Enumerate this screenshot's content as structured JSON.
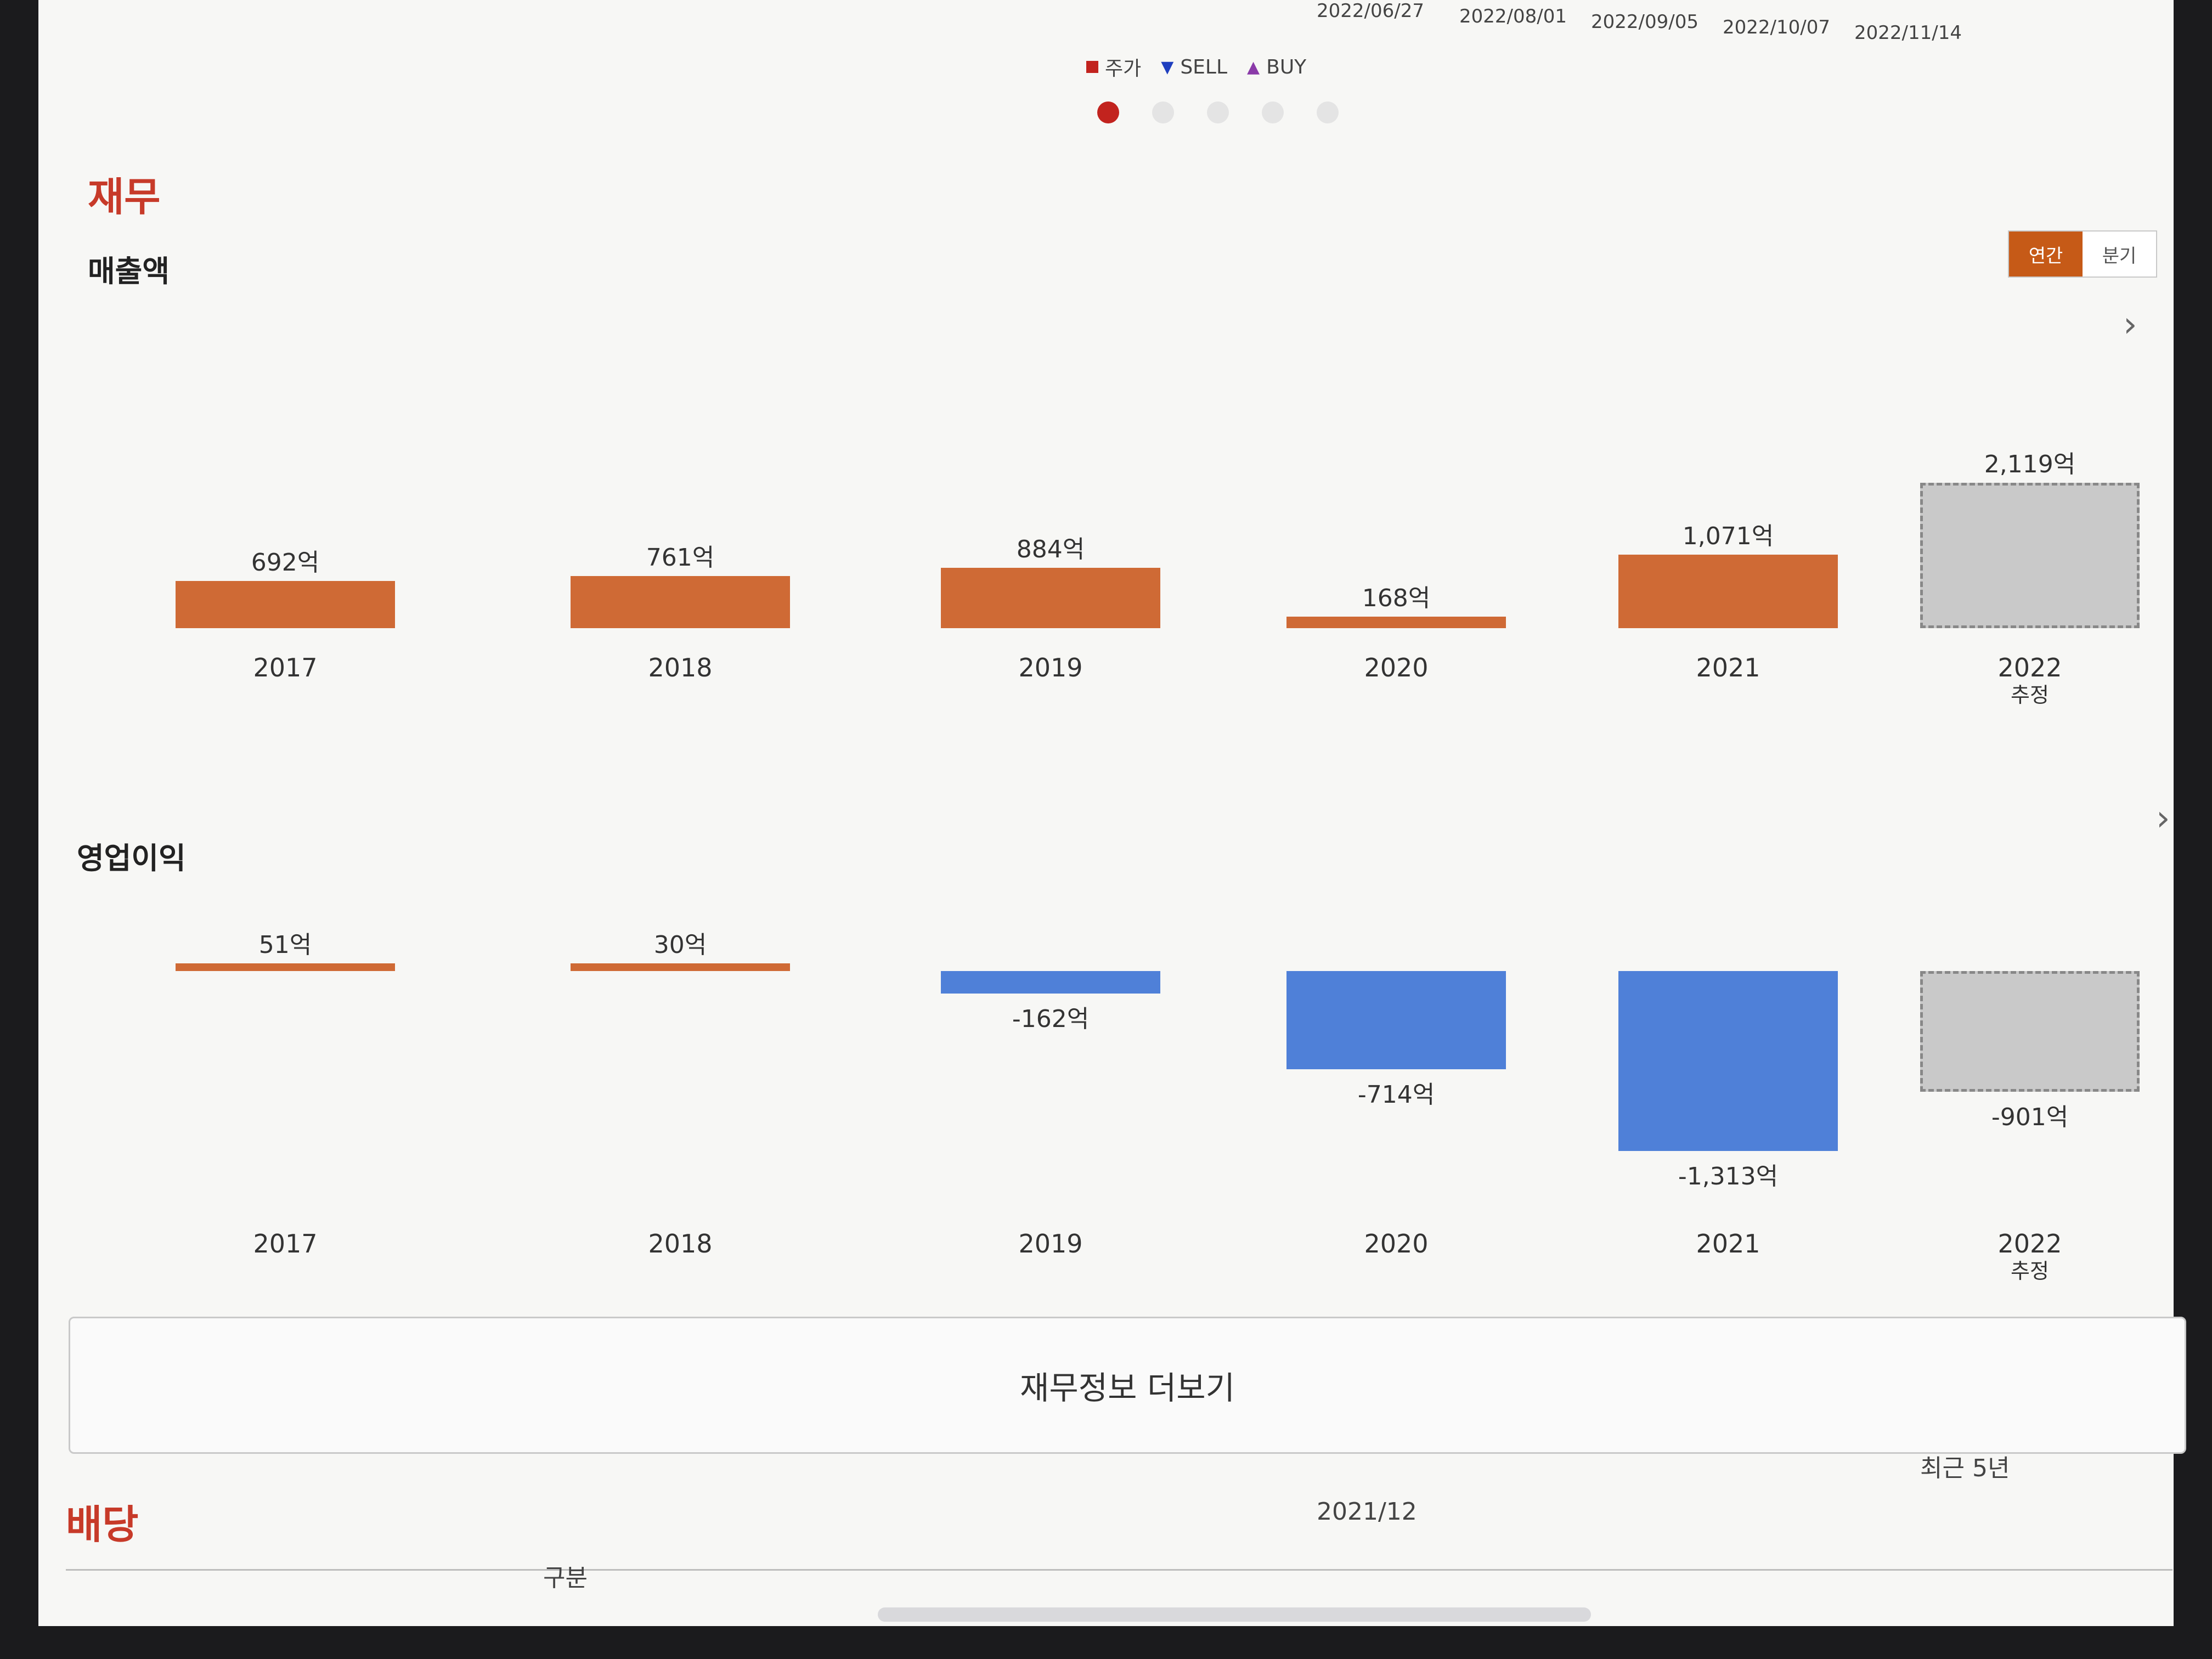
{
  "price_axis": {
    "dates": [
      "2022/06/27",
      "2022/08/01",
      "2022/09/05",
      "2022/10/07",
      "2022/11/14"
    ]
  },
  "legend": [
    {
      "label": "주가",
      "color": "#c2231e",
      "icon": "square-icon"
    },
    {
      "label": "SELL",
      "color": "#1f3fbf",
      "icon": "triangle-down-icon"
    },
    {
      "label": "BUY",
      "color": "#8a3aa8",
      "icon": "triangle-up-icon"
    }
  ],
  "carousel": {
    "count": 5,
    "active": 1
  },
  "finance": {
    "section_title": "재무",
    "toggle": {
      "annual": "연간",
      "quarter": "분기",
      "selected": "annual"
    },
    "more_button": "재무정보 더보기"
  },
  "chart_data": [
    {
      "type": "bar",
      "title": "매출액",
      "categories": [
        "2017",
        "2018",
        "2019",
        "2020",
        "2021",
        "2022"
      ],
      "category_subtitles": [
        "",
        "",
        "",
        "",
        "",
        "추정"
      ],
      "values": [
        692,
        761,
        884,
        168,
        1071,
        2119
      ],
      "value_labels": [
        "692억",
        "761억",
        "884억",
        "168억",
        "1,071억",
        "2,119억"
      ],
      "estimated": [
        false,
        false,
        false,
        false,
        false,
        true
      ]
    },
    {
      "type": "bar",
      "title": "영업이익",
      "categories": [
        "2017",
        "2018",
        "2019",
        "2020",
        "2021",
        "2022"
      ],
      "category_subtitles": [
        "",
        "",
        "",
        "",
        "",
        "추정"
      ],
      "values": [
        51,
        30,
        -162,
        -714,
        -1313,
        -901
      ],
      "value_labels": [
        "51억",
        "30억",
        "-162억",
        "-714억",
        "-1,313억",
        "-901억"
      ],
      "estimated": [
        false,
        false,
        false,
        false,
        false,
        true
      ]
    }
  ],
  "dividend": {
    "section_title": "배당",
    "period": "최근 5년",
    "column_header": "2021/12",
    "row_header": "구분"
  }
}
